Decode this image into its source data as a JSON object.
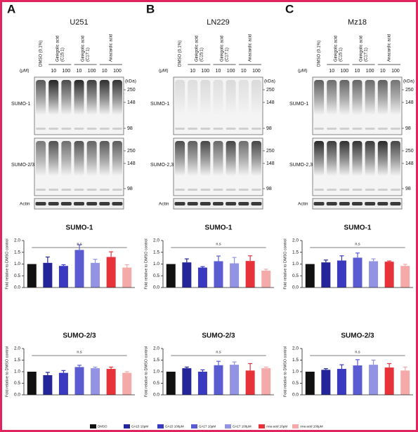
{
  "panels": [
    {
      "letter": "A",
      "cell_line": "U251",
      "treatments": [
        [
          "DMSO (0.1%)"
        ],
        [
          "Ginkgolic acid",
          "(C15:1)"
        ],
        [
          "Ginkgolic acid",
          "(C17:1)"
        ],
        [
          "Anacardic acid"
        ]
      ],
      "unit": "(μM)",
      "doses": [
        10,
        100,
        10,
        100,
        10,
        100
      ],
      "kda_unit": "(kDa)",
      "sumo1_label": "SUMO-1",
      "sumo1_markers": [
        250,
        148,
        98
      ],
      "sumo23_label": "SUMO-2/3",
      "sumo23_markers": [
        250,
        148,
        98
      ],
      "actin_label": "Actin"
    },
    {
      "letter": "B",
      "cell_line": "LN229",
      "treatments": [
        [
          "DMSO (0.1%)"
        ],
        [
          "Ginkgolic acid",
          "(C15:1)"
        ],
        [
          "Ginkgolic acid",
          "(C17:1)"
        ],
        [
          "Anacardic acid"
        ]
      ],
      "unit": "(μM)",
      "doses": [
        10,
        100,
        10,
        100,
        10,
        100
      ],
      "kda_unit": "(kDa)",
      "sumo1_label": "SUMO-1",
      "sumo1_markers": [
        250,
        148,
        98
      ],
      "sumo23_label": "SUMO-2,3",
      "sumo23_markers": [
        250,
        148,
        98
      ],
      "actin_label": "Actin"
    },
    {
      "letter": "C",
      "cell_line": "Mz18",
      "treatments": [
        [
          "DMSO (0.1%)"
        ],
        [
          "Ginkgolic acid",
          "(C15:1)"
        ],
        [
          "Ginkgolic acid",
          "(C17:1)"
        ],
        [
          "Anacardic acid"
        ]
      ],
      "unit": "(μM)",
      "doses": [
        10,
        100,
        10,
        100,
        10,
        100
      ],
      "kda_unit": "(kDa)",
      "sumo1_label": "SUMO-1",
      "sumo1_markers": [
        250,
        148,
        98
      ],
      "sumo23_label": "SUMO-2,3",
      "sumo23_markers": [
        250,
        148,
        98
      ],
      "actin_label": "Actin"
    }
  ],
  "chart_data": [
    {
      "type": "bar",
      "title": "SUMO-1",
      "ylabel": "Fold relative to DMSO control",
      "values": [
        1.0,
        1.05,
        0.92,
        1.6,
        1.05,
        1.3,
        0.85
      ],
      "errors": [
        0,
        0.25,
        0.05,
        0.22,
        0.15,
        0.22,
        0.12
      ],
      "ylim": [
        0,
        2
      ],
      "yticks": [
        {
          "value": 0,
          "label": "0.0"
        },
        {
          "value": 0.5,
          "label": "0.5"
        },
        {
          "value": 1,
          "label": "1.0"
        },
        {
          "value": 1.5,
          "label": "1.5"
        },
        {
          "value": 2,
          "label": "2.0"
        }
      ],
      "annotation": "n.s"
    },
    {
      "type": "bar",
      "title": "SUMO-2/3",
      "ylabel": "Fold relative to DMSO control",
      "values": [
        1.0,
        0.85,
        0.95,
        1.2,
        1.15,
        1.12,
        0.95
      ],
      "errors": [
        0,
        0.12,
        0.1,
        0.08,
        0.05,
        0.08,
        0.05
      ],
      "ylim": [
        0,
        2
      ],
      "yticks": [
        {
          "value": 0,
          "label": "0.0"
        },
        {
          "value": 0.5,
          "label": "0.5"
        },
        {
          "value": 1,
          "label": "1.0"
        },
        {
          "value": 1.5,
          "label": "1.5"
        },
        {
          "value": 2,
          "label": "2.0"
        }
      ],
      "annotation": "n.s"
    },
    {
      "type": "bar",
      "title": "SUMO-1",
      "ylabel": "Fold relative to DMSO control",
      "values": [
        1.0,
        1.07,
        0.85,
        1.12,
        1.03,
        1.13,
        0.72
      ],
      "errors": [
        0,
        0.15,
        0.04,
        0.22,
        0.25,
        0.22,
        0.06
      ],
      "ylim": [
        0,
        2
      ],
      "yticks": [
        {
          "value": 0,
          "label": "0.0"
        },
        {
          "value": 0.5,
          "label": "0.5"
        },
        {
          "value": 1,
          "label": "1.0"
        },
        {
          "value": 1.5,
          "label": "1.5"
        },
        {
          "value": 2,
          "label": "2.0"
        }
      ],
      "annotation": "n.s"
    },
    {
      "type": "bar",
      "title": "SUMO-2/3",
      "ylabel": "Fold relative to DMSO control",
      "values": [
        1.0,
        1.15,
        1.0,
        1.28,
        1.3,
        1.05,
        1.15
      ],
      "errors": [
        0,
        0.05,
        0.08,
        0.17,
        0.12,
        0.3,
        0.05
      ],
      "ylim": [
        0,
        2
      ],
      "yticks": [
        {
          "value": 0,
          "label": "0.0"
        },
        {
          "value": 0.5,
          "label": "0.5"
        },
        {
          "value": 1,
          "label": "1.0"
        },
        {
          "value": 1.5,
          "label": "1.5"
        },
        {
          "value": 2,
          "label": "2.0"
        }
      ],
      "annotation": "n.s"
    },
    {
      "type": "bar",
      "title": "SUMO-1",
      "ylabel": "Fold relative to DMSO control",
      "values": [
        1.0,
        1.07,
        1.15,
        1.27,
        1.12,
        1.1,
        0.92
      ],
      "errors": [
        0,
        0.1,
        0.2,
        0.2,
        0.1,
        0.03,
        0.07
      ],
      "ylim": [
        0,
        2
      ],
      "yticks": [
        {
          "value": 0,
          "label": "0.0"
        },
        {
          "value": 0.5,
          "label": "0.5"
        },
        {
          "value": 1,
          "label": "1.0"
        },
        {
          "value": 1.5,
          "label": "1.5"
        },
        {
          "value": 2,
          "label": "2.0"
        }
      ],
      "annotation": "n.s"
    },
    {
      "type": "bar",
      "title": "SUMO-2/3",
      "ylabel": "Fold relative to DMSO control",
      "values": [
        1.0,
        1.08,
        1.12,
        1.27,
        1.3,
        1.18,
        1.05
      ],
      "errors": [
        0,
        0.05,
        0.18,
        0.25,
        0.2,
        0.17,
        0.15
      ],
      "ylim": [
        0,
        2
      ],
      "yticks": [
        {
          "value": 0,
          "label": "0.0"
        },
        {
          "value": 0.5,
          "label": "0.5"
        },
        {
          "value": 1,
          "label": "1.0"
        },
        {
          "value": 1.5,
          "label": "1.5"
        },
        {
          "value": 2,
          "label": "2.0"
        }
      ],
      "annotation": "n.s"
    }
  ],
  "legend": {
    "entries": [
      {
        "name": "DMSO",
        "color": "#111111"
      },
      {
        "name": "GA15 10μM",
        "color": "#25259a"
      },
      {
        "name": "GA15 100μM",
        "color": "#3a3ac0"
      },
      {
        "name": "GA17 10μM",
        "color": "#5c5cd2"
      },
      {
        "name": "GA17 100μM",
        "color": "#9393e4"
      },
      {
        "name": "Ana acid 10μM",
        "color": "#e8323a"
      },
      {
        "name": "Ana acid 100μM",
        "color": "#f5aaaa"
      }
    ]
  }
}
